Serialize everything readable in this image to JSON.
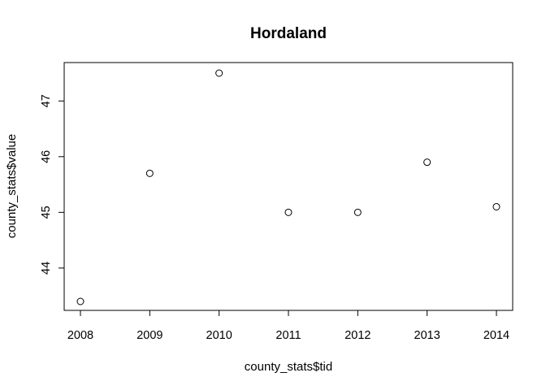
{
  "chart_data": {
    "type": "scatter",
    "title": "Hordaland",
    "xlabel": "county_stats$tid",
    "ylabel": "county_stats$value",
    "x": [
      2008,
      2009,
      2010,
      2011,
      2012,
      2013,
      2014
    ],
    "y": [
      43.4,
      45.7,
      47.5,
      45.0,
      45.0,
      45.9,
      45.1
    ],
    "xlim": [
      2008,
      2014
    ],
    "ylim": [
      43.4,
      47.5
    ],
    "x_ticks": [
      2008,
      2009,
      2010,
      2011,
      2012,
      2013,
      2014
    ],
    "y_ticks": [
      44,
      45,
      46,
      47
    ],
    "grid": false,
    "legend": "none",
    "marker": "open-circle",
    "colors": {
      "foreground": "#000000",
      "background": "#ffffff"
    }
  }
}
